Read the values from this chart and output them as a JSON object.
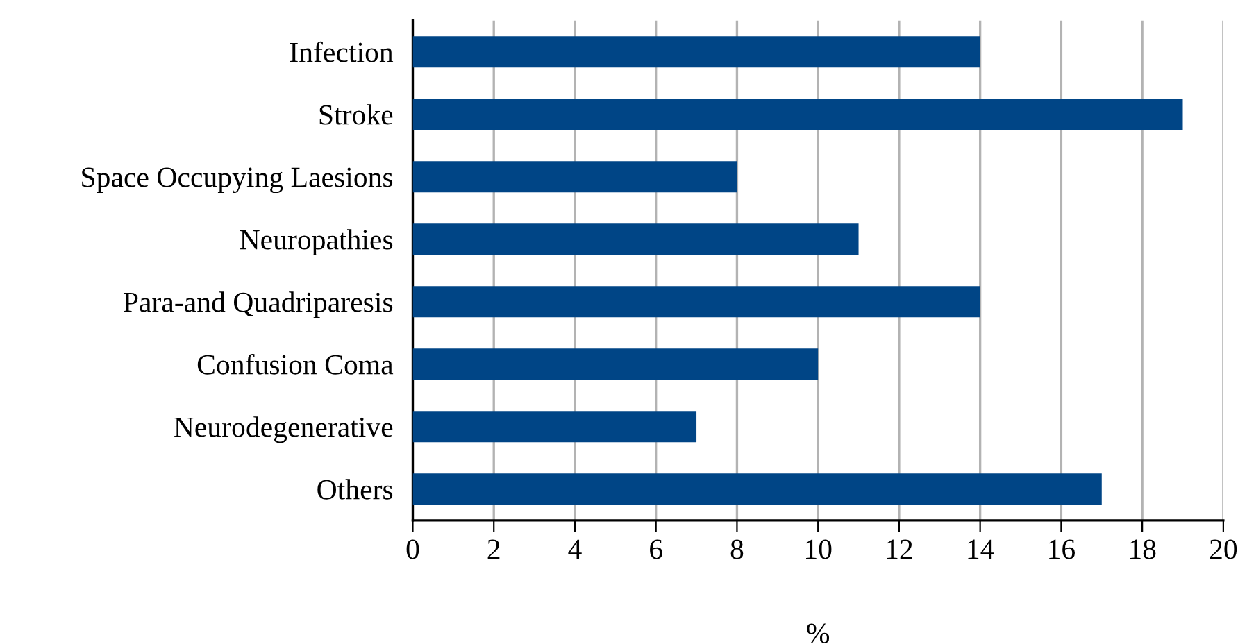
{
  "chart_data": {
    "type": "bar",
    "orientation": "horizontal",
    "categories": [
      "Infection",
      "Stroke",
      "Space Occupying Laesions",
      "Neuropathies",
      "Para-and Quadriparesis",
      "Confusion Coma",
      "Neurodegenerative",
      "Others"
    ],
    "values": [
      14,
      19,
      8,
      11,
      14,
      10,
      7,
      17
    ],
    "color": "#004586",
    "xlabel": "%",
    "xlim": [
      0,
      20
    ],
    "xticks": [
      0,
      2,
      4,
      6,
      8,
      10,
      12,
      14,
      16,
      18,
      20
    ],
    "grid": "x"
  }
}
